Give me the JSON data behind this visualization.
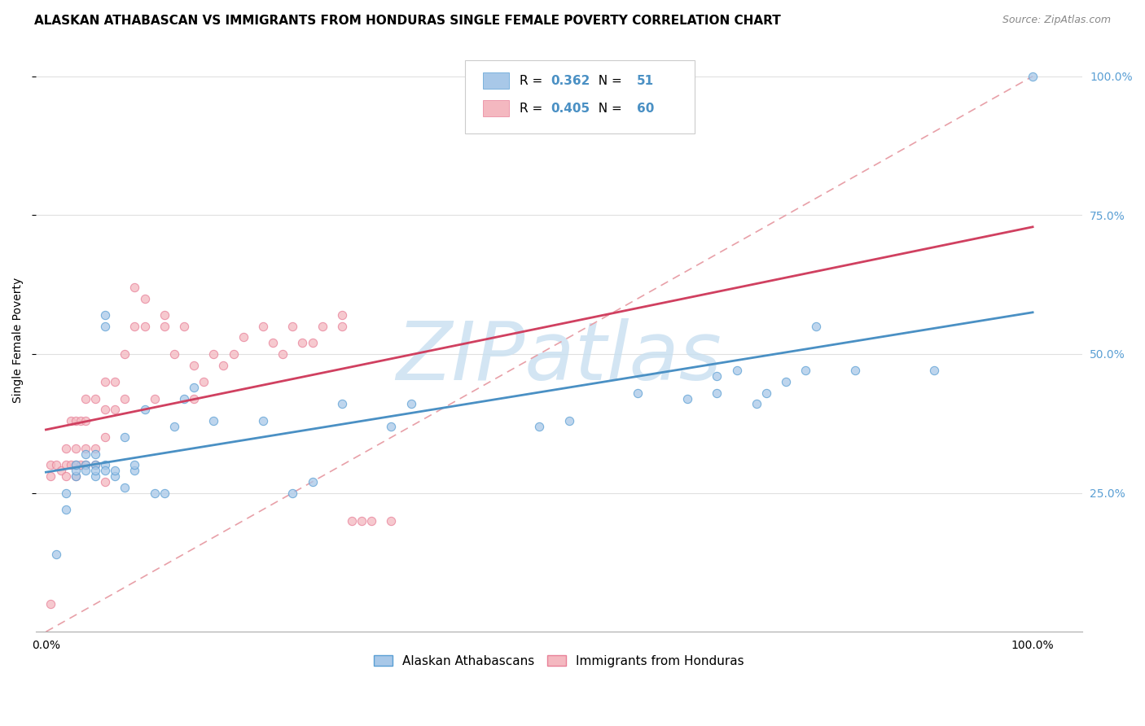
{
  "title": "ALASKAN ATHABASCAN VS IMMIGRANTS FROM HONDURAS SINGLE FEMALE POVERTY CORRELATION CHART",
  "source": "Source: ZipAtlas.com",
  "ylabel": "Single Female Poverty",
  "legend_label_blue": "Alaskan Athabascans",
  "legend_label_pink": "Immigrants from Honduras",
  "R_blue": 0.362,
  "N_blue": 51,
  "R_pink": 0.405,
  "N_pink": 60,
  "blue_color": "#a8c8e8",
  "pink_color": "#f4b8c0",
  "blue_edge_color": "#5a9fd4",
  "pink_edge_color": "#e88098",
  "blue_line_color": "#4a90c4",
  "pink_line_color": "#d04060",
  "diagonal_color": "#e8a0a8",
  "right_tick_color": "#5a9fd4",
  "blue_scatter_x": [
    0.01,
    0.02,
    0.02,
    0.03,
    0.03,
    0.03,
    0.04,
    0.04,
    0.04,
    0.05,
    0.05,
    0.05,
    0.05,
    0.06,
    0.06,
    0.06,
    0.06,
    0.07,
    0.07,
    0.08,
    0.08,
    0.09,
    0.09,
    0.1,
    0.11,
    0.12,
    0.13,
    0.14,
    0.15,
    0.17,
    0.22,
    0.25,
    0.27,
    0.3,
    0.35,
    0.37,
    0.5,
    0.53,
    0.6,
    0.65,
    0.68,
    0.68,
    0.7,
    0.72,
    0.73,
    0.75,
    0.77,
    0.78,
    0.82,
    0.9,
    1.0
  ],
  "blue_scatter_y": [
    0.14,
    0.22,
    0.25,
    0.28,
    0.29,
    0.3,
    0.3,
    0.32,
    0.29,
    0.3,
    0.28,
    0.32,
    0.29,
    0.57,
    0.55,
    0.3,
    0.29,
    0.28,
    0.29,
    0.35,
    0.26,
    0.29,
    0.3,
    0.4,
    0.25,
    0.25,
    0.37,
    0.42,
    0.44,
    0.38,
    0.38,
    0.25,
    0.27,
    0.41,
    0.37,
    0.41,
    0.37,
    0.38,
    0.43,
    0.42,
    0.43,
    0.46,
    0.47,
    0.41,
    0.43,
    0.45,
    0.47,
    0.55,
    0.47,
    0.47,
    1.0
  ],
  "pink_scatter_x": [
    0.005,
    0.005,
    0.01,
    0.015,
    0.02,
    0.02,
    0.02,
    0.025,
    0.025,
    0.03,
    0.03,
    0.03,
    0.03,
    0.035,
    0.035,
    0.04,
    0.04,
    0.04,
    0.04,
    0.05,
    0.05,
    0.05,
    0.06,
    0.06,
    0.06,
    0.07,
    0.07,
    0.08,
    0.08,
    0.09,
    0.09,
    0.1,
    0.1,
    0.11,
    0.12,
    0.12,
    0.13,
    0.14,
    0.15,
    0.15,
    0.16,
    0.17,
    0.18,
    0.19,
    0.2,
    0.22,
    0.23,
    0.24,
    0.25,
    0.26,
    0.27,
    0.28,
    0.3,
    0.3,
    0.31,
    0.32,
    0.33,
    0.35,
    0.005,
    0.06
  ],
  "pink_scatter_y": [
    0.28,
    0.3,
    0.3,
    0.29,
    0.28,
    0.3,
    0.33,
    0.3,
    0.38,
    0.28,
    0.3,
    0.33,
    0.38,
    0.3,
    0.38,
    0.3,
    0.33,
    0.38,
    0.42,
    0.3,
    0.33,
    0.42,
    0.35,
    0.4,
    0.45,
    0.4,
    0.45,
    0.42,
    0.5,
    0.55,
    0.62,
    0.55,
    0.6,
    0.42,
    0.55,
    0.57,
    0.5,
    0.55,
    0.42,
    0.48,
    0.45,
    0.5,
    0.48,
    0.5,
    0.53,
    0.55,
    0.52,
    0.5,
    0.55,
    0.52,
    0.52,
    0.55,
    0.55,
    0.57,
    0.2,
    0.2,
    0.2,
    0.2,
    0.05,
    0.27
  ],
  "ylim": [
    0.0,
    1.05
  ],
  "xlim": [
    -0.01,
    1.05
  ],
  "y_ticks": [
    0.25,
    0.5,
    0.75,
    1.0
  ],
  "y_tick_labels": [
    "25.0%",
    "50.0%",
    "75.0%",
    "100.0%"
  ],
  "x_ticks": [
    0.0,
    0.25,
    0.5,
    0.75,
    1.0
  ],
  "x_tick_labels": [
    "0.0%",
    "",
    "",
    "",
    "100.0%"
  ],
  "title_fontsize": 11,
  "source_fontsize": 9,
  "axis_label_fontsize": 10,
  "tick_label_fontsize": 10,
  "legend_fontsize": 11,
  "scatter_size": 55,
  "scatter_alpha": 0.75,
  "line_width": 2.0,
  "grid_color": "#e0e0e0",
  "watermark_text": "ZIPatlas",
  "watermark_color": "#c8dff0",
  "watermark_fontsize": 72
}
